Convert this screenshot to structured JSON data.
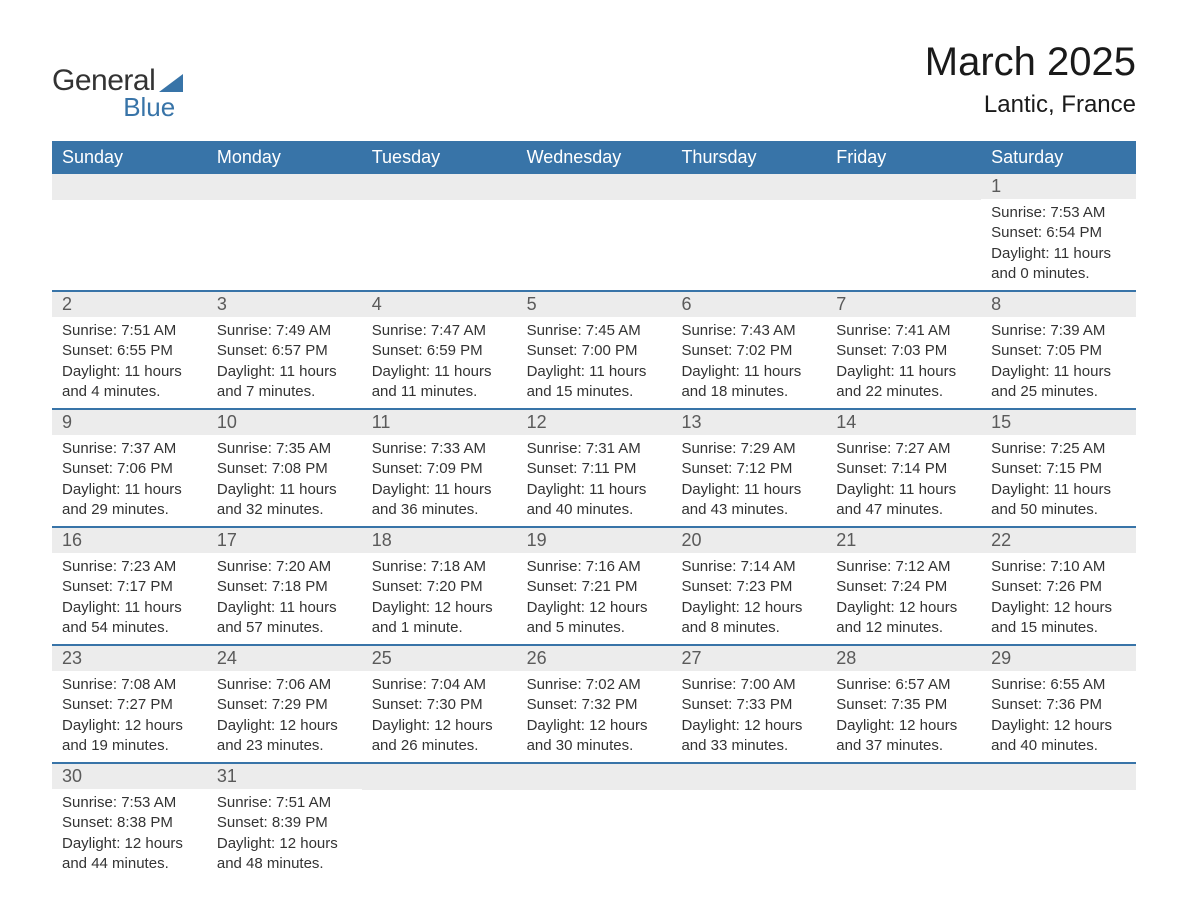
{
  "logo": {
    "text_general": "General",
    "text_blue": "Blue",
    "accent_color": "#3874a8"
  },
  "title": {
    "month": "March 2025",
    "location": "Lantic, France"
  },
  "colors": {
    "header_bg": "#3874a8",
    "header_text": "#ffffff",
    "daynum_bg": "#ececec",
    "daynum_text": "#5a5a5a",
    "body_text": "#333333",
    "row_border": "#3874a8",
    "page_bg": "#ffffff"
  },
  "fonts": {
    "month_title_size": 40,
    "location_size": 24,
    "header_cell_size": 18,
    "daynum_size": 18,
    "body_size": 15
  },
  "weekdays": [
    "Sunday",
    "Monday",
    "Tuesday",
    "Wednesday",
    "Thursday",
    "Friday",
    "Saturday"
  ],
  "weeks": [
    [
      null,
      null,
      null,
      null,
      null,
      null,
      {
        "day": "1",
        "sunrise": "Sunrise: 7:53 AM",
        "sunset": "Sunset: 6:54 PM",
        "daylight1": "Daylight: 11 hours",
        "daylight2": "and 0 minutes."
      }
    ],
    [
      {
        "day": "2",
        "sunrise": "Sunrise: 7:51 AM",
        "sunset": "Sunset: 6:55 PM",
        "daylight1": "Daylight: 11 hours",
        "daylight2": "and 4 minutes."
      },
      {
        "day": "3",
        "sunrise": "Sunrise: 7:49 AM",
        "sunset": "Sunset: 6:57 PM",
        "daylight1": "Daylight: 11 hours",
        "daylight2": "and 7 minutes."
      },
      {
        "day": "4",
        "sunrise": "Sunrise: 7:47 AM",
        "sunset": "Sunset: 6:59 PM",
        "daylight1": "Daylight: 11 hours",
        "daylight2": "and 11 minutes."
      },
      {
        "day": "5",
        "sunrise": "Sunrise: 7:45 AM",
        "sunset": "Sunset: 7:00 PM",
        "daylight1": "Daylight: 11 hours",
        "daylight2": "and 15 minutes."
      },
      {
        "day": "6",
        "sunrise": "Sunrise: 7:43 AM",
        "sunset": "Sunset: 7:02 PM",
        "daylight1": "Daylight: 11 hours",
        "daylight2": "and 18 minutes."
      },
      {
        "day": "7",
        "sunrise": "Sunrise: 7:41 AM",
        "sunset": "Sunset: 7:03 PM",
        "daylight1": "Daylight: 11 hours",
        "daylight2": "and 22 minutes."
      },
      {
        "day": "8",
        "sunrise": "Sunrise: 7:39 AM",
        "sunset": "Sunset: 7:05 PM",
        "daylight1": "Daylight: 11 hours",
        "daylight2": "and 25 minutes."
      }
    ],
    [
      {
        "day": "9",
        "sunrise": "Sunrise: 7:37 AM",
        "sunset": "Sunset: 7:06 PM",
        "daylight1": "Daylight: 11 hours",
        "daylight2": "and 29 minutes."
      },
      {
        "day": "10",
        "sunrise": "Sunrise: 7:35 AM",
        "sunset": "Sunset: 7:08 PM",
        "daylight1": "Daylight: 11 hours",
        "daylight2": "and 32 minutes."
      },
      {
        "day": "11",
        "sunrise": "Sunrise: 7:33 AM",
        "sunset": "Sunset: 7:09 PM",
        "daylight1": "Daylight: 11 hours",
        "daylight2": "and 36 minutes."
      },
      {
        "day": "12",
        "sunrise": "Sunrise: 7:31 AM",
        "sunset": "Sunset: 7:11 PM",
        "daylight1": "Daylight: 11 hours",
        "daylight2": "and 40 minutes."
      },
      {
        "day": "13",
        "sunrise": "Sunrise: 7:29 AM",
        "sunset": "Sunset: 7:12 PM",
        "daylight1": "Daylight: 11 hours",
        "daylight2": "and 43 minutes."
      },
      {
        "day": "14",
        "sunrise": "Sunrise: 7:27 AM",
        "sunset": "Sunset: 7:14 PM",
        "daylight1": "Daylight: 11 hours",
        "daylight2": "and 47 minutes."
      },
      {
        "day": "15",
        "sunrise": "Sunrise: 7:25 AM",
        "sunset": "Sunset: 7:15 PM",
        "daylight1": "Daylight: 11 hours",
        "daylight2": "and 50 minutes."
      }
    ],
    [
      {
        "day": "16",
        "sunrise": "Sunrise: 7:23 AM",
        "sunset": "Sunset: 7:17 PM",
        "daylight1": "Daylight: 11 hours",
        "daylight2": "and 54 minutes."
      },
      {
        "day": "17",
        "sunrise": "Sunrise: 7:20 AM",
        "sunset": "Sunset: 7:18 PM",
        "daylight1": "Daylight: 11 hours",
        "daylight2": "and 57 minutes."
      },
      {
        "day": "18",
        "sunrise": "Sunrise: 7:18 AM",
        "sunset": "Sunset: 7:20 PM",
        "daylight1": "Daylight: 12 hours",
        "daylight2": "and 1 minute."
      },
      {
        "day": "19",
        "sunrise": "Sunrise: 7:16 AM",
        "sunset": "Sunset: 7:21 PM",
        "daylight1": "Daylight: 12 hours",
        "daylight2": "and 5 minutes."
      },
      {
        "day": "20",
        "sunrise": "Sunrise: 7:14 AM",
        "sunset": "Sunset: 7:23 PM",
        "daylight1": "Daylight: 12 hours",
        "daylight2": "and 8 minutes."
      },
      {
        "day": "21",
        "sunrise": "Sunrise: 7:12 AM",
        "sunset": "Sunset: 7:24 PM",
        "daylight1": "Daylight: 12 hours",
        "daylight2": "and 12 minutes."
      },
      {
        "day": "22",
        "sunrise": "Sunrise: 7:10 AM",
        "sunset": "Sunset: 7:26 PM",
        "daylight1": "Daylight: 12 hours",
        "daylight2": "and 15 minutes."
      }
    ],
    [
      {
        "day": "23",
        "sunrise": "Sunrise: 7:08 AM",
        "sunset": "Sunset: 7:27 PM",
        "daylight1": "Daylight: 12 hours",
        "daylight2": "and 19 minutes."
      },
      {
        "day": "24",
        "sunrise": "Sunrise: 7:06 AM",
        "sunset": "Sunset: 7:29 PM",
        "daylight1": "Daylight: 12 hours",
        "daylight2": "and 23 minutes."
      },
      {
        "day": "25",
        "sunrise": "Sunrise: 7:04 AM",
        "sunset": "Sunset: 7:30 PM",
        "daylight1": "Daylight: 12 hours",
        "daylight2": "and 26 minutes."
      },
      {
        "day": "26",
        "sunrise": "Sunrise: 7:02 AM",
        "sunset": "Sunset: 7:32 PM",
        "daylight1": "Daylight: 12 hours",
        "daylight2": "and 30 minutes."
      },
      {
        "day": "27",
        "sunrise": "Sunrise: 7:00 AM",
        "sunset": "Sunset: 7:33 PM",
        "daylight1": "Daylight: 12 hours",
        "daylight2": "and 33 minutes."
      },
      {
        "day": "28",
        "sunrise": "Sunrise: 6:57 AM",
        "sunset": "Sunset: 7:35 PM",
        "daylight1": "Daylight: 12 hours",
        "daylight2": "and 37 minutes."
      },
      {
        "day": "29",
        "sunrise": "Sunrise: 6:55 AM",
        "sunset": "Sunset: 7:36 PM",
        "daylight1": "Daylight: 12 hours",
        "daylight2": "and 40 minutes."
      }
    ],
    [
      {
        "day": "30",
        "sunrise": "Sunrise: 7:53 AM",
        "sunset": "Sunset: 8:38 PM",
        "daylight1": "Daylight: 12 hours",
        "daylight2": "and 44 minutes."
      },
      {
        "day": "31",
        "sunrise": "Sunrise: 7:51 AM",
        "sunset": "Sunset: 8:39 PM",
        "daylight1": "Daylight: 12 hours",
        "daylight2": "and 48 minutes."
      },
      null,
      null,
      null,
      null,
      null
    ]
  ]
}
